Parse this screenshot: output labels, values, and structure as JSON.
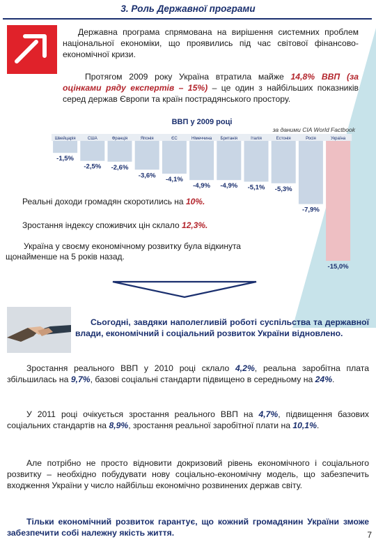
{
  "title": "3. Роль Державної програми",
  "intro": "Державна програма спрямована на вирішення системних проблем національної економіки, що проявились під час світової фінансово-економічної кризи.",
  "gdp_para": {
    "before": "Протягом 2009 року Україна втратила майже ",
    "value": "14,8% ВВП",
    "middle": " (за оцінками ряду експертів – 15%)",
    "after": " – це один з найбільших показників серед держав Європи та країн пострадянського простору."
  },
  "chart_data": {
    "type": "bar",
    "title": "ВВП у 2009 році",
    "source": "за даними CIA World Factbook",
    "categories": [
      "Швейцарія",
      "США",
      "Франція",
      "Японія",
      "ЄС",
      "Німеччина",
      "Британія",
      "Італія",
      "Естонія",
      "Росія",
      "Україна"
    ],
    "values": [
      -1.5,
      -2.5,
      -2.6,
      -3.6,
      -4.1,
      -4.9,
      -4.9,
      -5.1,
      -5.3,
      -7.9,
      -15.0
    ],
    "value_labels": [
      "-1,5%",
      "-2,5%",
      "-2,6%",
      "-3,6%",
      "-4,1%",
      "-4,9%",
      "-4,9%",
      "-5,1%",
      "-5,3%",
      "-7,9%",
      "-15,0%"
    ],
    "ylim": [
      -15.0,
      0
    ],
    "colors": {
      "bar": "#c9d6e5",
      "highlight": "#eebfc3",
      "header": "#1a2f6e"
    }
  },
  "income": {
    "text": "Реальні доходи громадян скоротились на ",
    "value": "10%."
  },
  "cpi": {
    "text": "Зростання індексу споживчих цін склало ",
    "value": "12,3%."
  },
  "setback": "Україна у своєму економічному розвитку була відкинута щонайменше на 5 років назад.",
  "today": "Сьогодні, завдяки наполегливій роботі суспільства та державної влади, економічний і соціальний розвиток України відновлено.",
  "growth2010": {
    "p1": "Зростання реального ВВП у 2010 році склало ",
    "v1": "4,2%",
    "p2": ", реальна заробітна плата збільшилась на ",
    "v2": "9,7%",
    "p3": ", базові соціальні стандарти підвищено в середньому на ",
    "v3": "24%",
    "p4": "."
  },
  "growth2011": {
    "p1": "У 2011 році очікується зростання реального ВВП на ",
    "v1": "4,7%",
    "p2": ", підвищення базових соціальних стандартів на ",
    "v2": "8,9%",
    "p3": ", зростання реальної заробітної плати на ",
    "v3": "10,1%",
    "p4": "."
  },
  "model": "Але потрібно не просто відновити докризовий рівень економічного і соціального розвитку – необхідно побудувати нову соціально-економічну модель, що забезпечить входження України у число найбільш економічно розвинених держав світу.",
  "closing": "Тільки економічний розвиток гарантує, що кожний громадянин України зможе забезпечити собі належну якість життя.",
  "page_number": "7"
}
